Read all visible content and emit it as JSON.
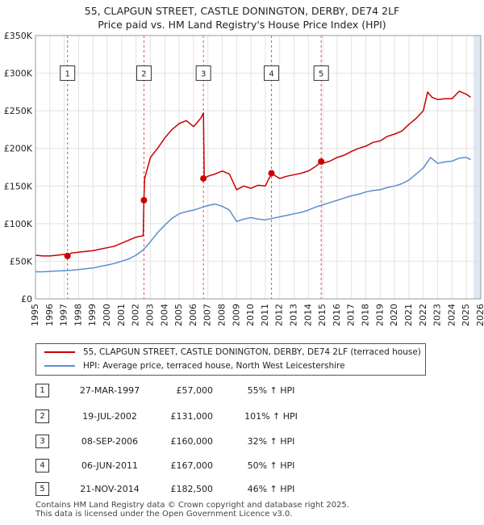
{
  "title_line1": "55, CLAPGUN STREET, CASTLE DONINGTON, DERBY, DE74 2LF",
  "title_line2": "Price paid vs. HM Land Registry's House Price Index (HPI)",
  "colors": {
    "property": "#cc0000",
    "hpi": "#5b8fcf",
    "shade": "#dfe7f3",
    "grid": "#e2e2e2",
    "vline": "#e05050"
  },
  "legend": {
    "property_label": "55, CLAPGUN STREET, CASTLE DONINGTON, DERBY, DE74 2LF (terraced house)",
    "hpi_label": "HPI: Average price, terraced house, North West Leicestershire"
  },
  "transactions": [
    {
      "num": "1",
      "date": "27-MAR-1997",
      "price": "£57,000",
      "hpi": "55% ↑ HPI"
    },
    {
      "num": "2",
      "date": "19-JUL-2002",
      "price": "£131,000",
      "hpi": "101% ↑ HPI"
    },
    {
      "num": "3",
      "date": "08-SEP-2006",
      "price": "£160,000",
      "hpi": "32% ↑ HPI"
    },
    {
      "num": "4",
      "date": "06-JUN-2011",
      "price": "£167,000",
      "hpi": "50% ↑ HPI"
    },
    {
      "num": "5",
      "date": "21-NOV-2014",
      "price": "£182,500",
      "hpi": "46% ↑ HPI"
    }
  ],
  "footer_line1": "Contains HM Land Registry data © Crown copyright and database right 2025.",
  "footer_line2": "This data is licensed under the Open Government Licence v3.0.",
  "chart_data": {
    "type": "line",
    "title": "55, CLAPGUN STREET, CASTLE DONINGTON, DERBY, DE74 2LF",
    "subtitle": "Price paid vs. HM Land Registry's House Price Index (HPI)",
    "xlabel": "",
    "ylabel": "",
    "xlim": [
      1995,
      2026
    ],
    "ylim": [
      0,
      350000
    ],
    "x_ticks": [
      1995,
      1996,
      1997,
      1998,
      1999,
      2000,
      2001,
      2002,
      2003,
      2004,
      2005,
      2006,
      2007,
      2008,
      2009,
      2010,
      2011,
      2012,
      2013,
      2014,
      2015,
      2016,
      2017,
      2018,
      2019,
      2020,
      2021,
      2022,
      2023,
      2024,
      2025,
      2026
    ],
    "y_ticks": [
      {
        "value": 0,
        "label": "£0"
      },
      {
        "value": 50000,
        "label": "£50K"
      },
      {
        "value": 100000,
        "label": "£100K"
      },
      {
        "value": 150000,
        "label": "£150K"
      },
      {
        "value": 200000,
        "label": "£200K"
      },
      {
        "value": 250000,
        "label": "£250K"
      },
      {
        "value": 300000,
        "label": "£300K"
      },
      {
        "value": 350000,
        "label": "£350K"
      }
    ],
    "future_shade_from": 2025.5,
    "sales": [
      {
        "num": "1",
        "x": 1997.23,
        "y": 57000
      },
      {
        "num": "2",
        "x": 2002.55,
        "y": 131000
      },
      {
        "num": "3",
        "x": 2006.69,
        "y": 160000
      },
      {
        "num": "4",
        "x": 2011.43,
        "y": 167000
      },
      {
        "num": "5",
        "x": 2014.89,
        "y": 182500
      }
    ],
    "series": [
      {
        "name": "55, CLAPGUN STREET, CASTLE DONINGTON, DERBY, DE74 2LF (terraced house)",
        "x": [
          1995.0,
          1995.5,
          1996.0,
          1996.5,
          1997.0,
          1997.23,
          1997.5,
          1998.0,
          1998.5,
          1999.0,
          1999.5,
          2000.0,
          2000.5,
          2001.0,
          2001.5,
          2002.0,
          2002.5,
          2002.55,
          2002.6,
          2003.0,
          2003.5,
          2004.0,
          2004.5,
          2005.0,
          2005.5,
          2006.0,
          2006.5,
          2006.69,
          2006.75,
          2007.0,
          2007.5,
          2008.0,
          2008.5,
          2009.0,
          2009.5,
          2010.0,
          2010.5,
          2011.0,
          2011.43,
          2011.5,
          2012.0,
          2012.5,
          2013.0,
          2013.5,
          2014.0,
          2014.5,
          2014.89,
          2015.0,
          2015.5,
          2016.0,
          2016.5,
          2017.0,
          2017.5,
          2018.0,
          2018.5,
          2019.0,
          2019.5,
          2020.0,
          2020.5,
          2021.0,
          2021.5,
          2022.0,
          2022.3,
          2022.6,
          2023.0,
          2023.5,
          2024.0,
          2024.5,
          2025.0,
          2025.3
        ],
        "values": [
          58000,
          57000,
          57000,
          58000,
          59000,
          57000,
          61000,
          62000,
          63000,
          64000,
          66000,
          68000,
          70000,
          74000,
          78000,
          82000,
          84000,
          131000,
          160000,
          188000,
          200000,
          214000,
          225000,
          233000,
          237000,
          229000,
          240000,
          247000,
          160000,
          163000,
          166000,
          170000,
          166000,
          145000,
          150000,
          147000,
          151000,
          150000,
          167000,
          166000,
          160000,
          163000,
          165000,
          167000,
          170000,
          176000,
          182500,
          180000,
          183000,
          188000,
          191000,
          196000,
          200000,
          203000,
          208000,
          210000,
          216000,
          219000,
          223000,
          232000,
          240000,
          250000,
          275000,
          268000,
          265000,
          266000,
          266000,
          276000,
          272000,
          268000
        ]
      },
      {
        "name": "HPI: Average price, terraced house, North West Leicestershire",
        "x": [
          1995.0,
          1995.5,
          1996.0,
          1996.5,
          1997.0,
          1997.5,
          1998.0,
          1998.5,
          1999.0,
          1999.5,
          2000.0,
          2000.5,
          2001.0,
          2001.5,
          2002.0,
          2002.5,
          2003.0,
          2003.5,
          2004.0,
          2004.5,
          2005.0,
          2005.5,
          2006.0,
          2006.5,
          2007.0,
          2007.5,
          2008.0,
          2008.5,
          2009.0,
          2009.5,
          2010.0,
          2010.5,
          2011.0,
          2011.5,
          2012.0,
          2012.5,
          2013.0,
          2013.5,
          2014.0,
          2014.5,
          2015.0,
          2015.5,
          2016.0,
          2016.5,
          2017.0,
          2017.5,
          2018.0,
          2018.5,
          2019.0,
          2019.5,
          2020.0,
          2020.5,
          2021.0,
          2021.5,
          2022.0,
          2022.5,
          2023.0,
          2023.5,
          2024.0,
          2024.5,
          2025.0,
          2025.3
        ],
        "values": [
          36000,
          36000,
          36500,
          37000,
          37500,
          38000,
          39000,
          40000,
          41000,
          43000,
          45000,
          47000,
          50000,
          53000,
          58000,
          65000,
          76000,
          88000,
          98000,
          107000,
          113000,
          116000,
          118000,
          121000,
          124000,
          126000,
          123000,
          118000,
          103000,
          106000,
          108000,
          106000,
          105000,
          107000,
          109000,
          111000,
          113000,
          115000,
          118000,
          122000,
          125000,
          128000,
          131000,
          134000,
          137000,
          139000,
          142000,
          144000,
          145000,
          148000,
          150000,
          153000,
          158000,
          166000,
          174000,
          188000,
          180000,
          182000,
          183000,
          187000,
          188000,
          185000
        ]
      }
    ]
  }
}
